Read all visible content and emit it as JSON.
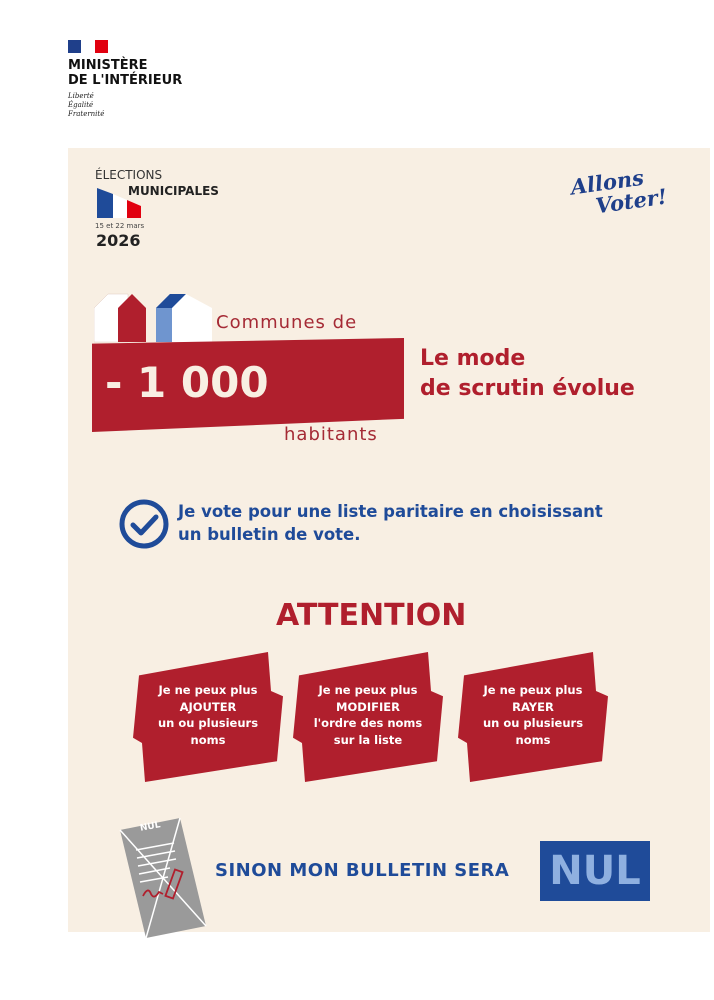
{
  "header": {
    "ministry_line1": "MINISTÈRE",
    "ministry_line2": "DE L'INTÉRIEUR",
    "motto": [
      "Liberté",
      "Égalité",
      "Fraternité"
    ],
    "flag_colors": [
      "#1f3f8a",
      "#ffffff",
      "#e1000f"
    ]
  },
  "election": {
    "line1": "ÉLECTIONS",
    "line2": "MUNICIPALES",
    "dates": "15 et 22 mars",
    "year": "2026",
    "slogan_line1": "Allons",
    "slogan_line2": "Voter!"
  },
  "communes": {
    "prefix": "Communes de",
    "number": "- 1 000",
    "suffix": "habitants",
    "headline_line1": "Le mode",
    "headline_line2": "de scrutin évolue"
  },
  "vote": {
    "line1": "Je vote pour une liste paritaire en choisissant",
    "line2": "un bulletin de vote."
  },
  "attention": {
    "title": "ATTENTION",
    "items": [
      {
        "l1": "Je ne peux plus",
        "l2": "AJOUTER",
        "l3": "un ou plusieurs",
        "l4": "noms"
      },
      {
        "l1": "Je ne peux plus",
        "l2": "MODIFIER",
        "l3": "l'ordre des noms",
        "l4": "sur la liste"
      },
      {
        "l1": "Je ne peux plus",
        "l2": "RAYER",
        "l3": "un ou plusieurs",
        "l4": "noms"
      }
    ]
  },
  "footer": {
    "ballot_label": "NUL",
    "text": "SINON MON BULLETIN SERA",
    "badge": "NUL"
  },
  "colors": {
    "red": "#b01f2d",
    "blue": "#1f4b99",
    "cream": "#f8efe3"
  }
}
